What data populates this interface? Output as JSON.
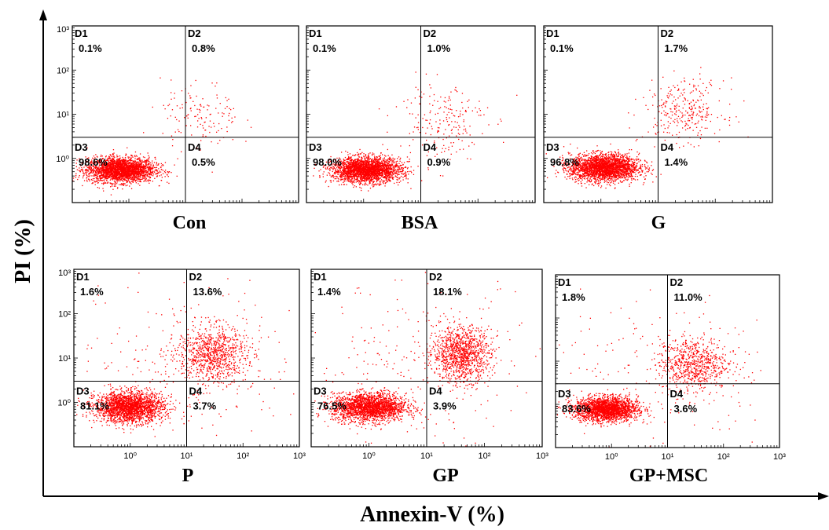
{
  "figure": {
    "ylabel": "PI (%)",
    "xlabel": "Annexin-V (%)"
  },
  "chart_data": [
    {
      "type": "scatter",
      "title": "Con",
      "x_scale": "log",
      "y_scale": "log",
      "xlim": [
        0.1,
        1000
      ],
      "ylim": [
        0.1,
        1000
      ],
      "x_ticks": [],
      "y_ticks": [
        "10⁰",
        "10¹",
        "10²",
        "10³"
      ],
      "quadrant_gate": [
        10,
        3
      ],
      "quadrants": [
        {
          "label": "D1",
          "percent": "0.1%"
        },
        {
          "label": "D2",
          "percent": "0.8%"
        },
        {
          "label": "D3",
          "percent": "98.6%"
        },
        {
          "label": "D4",
          "percent": "0.5%"
        }
      ],
      "color": "#ff0000"
    },
    {
      "type": "scatter",
      "title": "BSA",
      "x_scale": "log",
      "y_scale": "log",
      "xlim": [
        0.1,
        1000
      ],
      "ylim": [
        0.1,
        1000
      ],
      "x_ticks": [],
      "y_ticks": [],
      "quadrant_gate": [
        10,
        3
      ],
      "quadrants": [
        {
          "label": "D1",
          "percent": "0.1%"
        },
        {
          "label": "D2",
          "percent": "1.0%"
        },
        {
          "label": "D3",
          "percent": "98.0%"
        },
        {
          "label": "D4",
          "percent": "0.9%"
        }
      ],
      "color": "#ff0000"
    },
    {
      "type": "scatter",
      "title": "G",
      "x_scale": "log",
      "y_scale": "log",
      "xlim": [
        0.1,
        1000
      ],
      "ylim": [
        0.1,
        1000
      ],
      "x_ticks": [],
      "y_ticks": [],
      "quadrant_gate": [
        10,
        3
      ],
      "quadrants": [
        {
          "label": "D1",
          "percent": "0.1%"
        },
        {
          "label": "D2",
          "percent": "1.7%"
        },
        {
          "label": "D3",
          "percent": "96.8%"
        },
        {
          "label": "D4",
          "percent": "1.4%"
        }
      ],
      "color": "#ff0000"
    },
    {
      "type": "scatter",
      "title": "P",
      "x_scale": "log",
      "y_scale": "log",
      "xlim": [
        0.1,
        1000
      ],
      "ylim": [
        0.1,
        1000
      ],
      "x_ticks": [
        "10⁰",
        "10¹",
        "10²",
        "10³"
      ],
      "y_ticks": [
        "10⁰",
        "10¹",
        "10²",
        "10³"
      ],
      "quadrant_gate": [
        10,
        3
      ],
      "quadrants": [
        {
          "label": "D1",
          "percent": "1.6%"
        },
        {
          "label": "D2",
          "percent": "13.6%"
        },
        {
          "label": "D3",
          "percent": "81.1%"
        },
        {
          "label": "D4",
          "percent": "3.7%"
        }
      ],
      "color": "#ff0000"
    },
    {
      "type": "scatter",
      "title": "GP",
      "x_scale": "log",
      "y_scale": "log",
      "xlim": [
        0.1,
        1000
      ],
      "ylim": [
        0.1,
        1000
      ],
      "x_ticks": [
        "10⁰",
        "10¹",
        "10²",
        "10³"
      ],
      "y_ticks": [],
      "quadrant_gate": [
        10,
        3
      ],
      "quadrants": [
        {
          "label": "D1",
          "percent": "1.4%"
        },
        {
          "label": "D2",
          "percent": "18.1%"
        },
        {
          "label": "D3",
          "percent": "76.5%"
        },
        {
          "label": "D4",
          "percent": "3.9%"
        }
      ],
      "color": "#ff0000"
    },
    {
      "type": "scatter",
      "title": "GP+MSC",
      "x_scale": "log",
      "y_scale": "log",
      "xlim": [
        0.1,
        1000
      ],
      "ylim": [
        0.1,
        1000
      ],
      "x_ticks": [
        "10⁰",
        "10¹",
        "10²",
        "10³"
      ],
      "y_ticks": [],
      "quadrant_gate": [
        10,
        3
      ],
      "quadrants": [
        {
          "label": "D1",
          "percent": "1.8%"
        },
        {
          "label": "D2",
          "percent": "11.0%"
        },
        {
          "label": "D3",
          "percent": "83.6%"
        },
        {
          "label": "D4",
          "percent": "3.6%"
        }
      ],
      "color": "#ff0000"
    }
  ]
}
